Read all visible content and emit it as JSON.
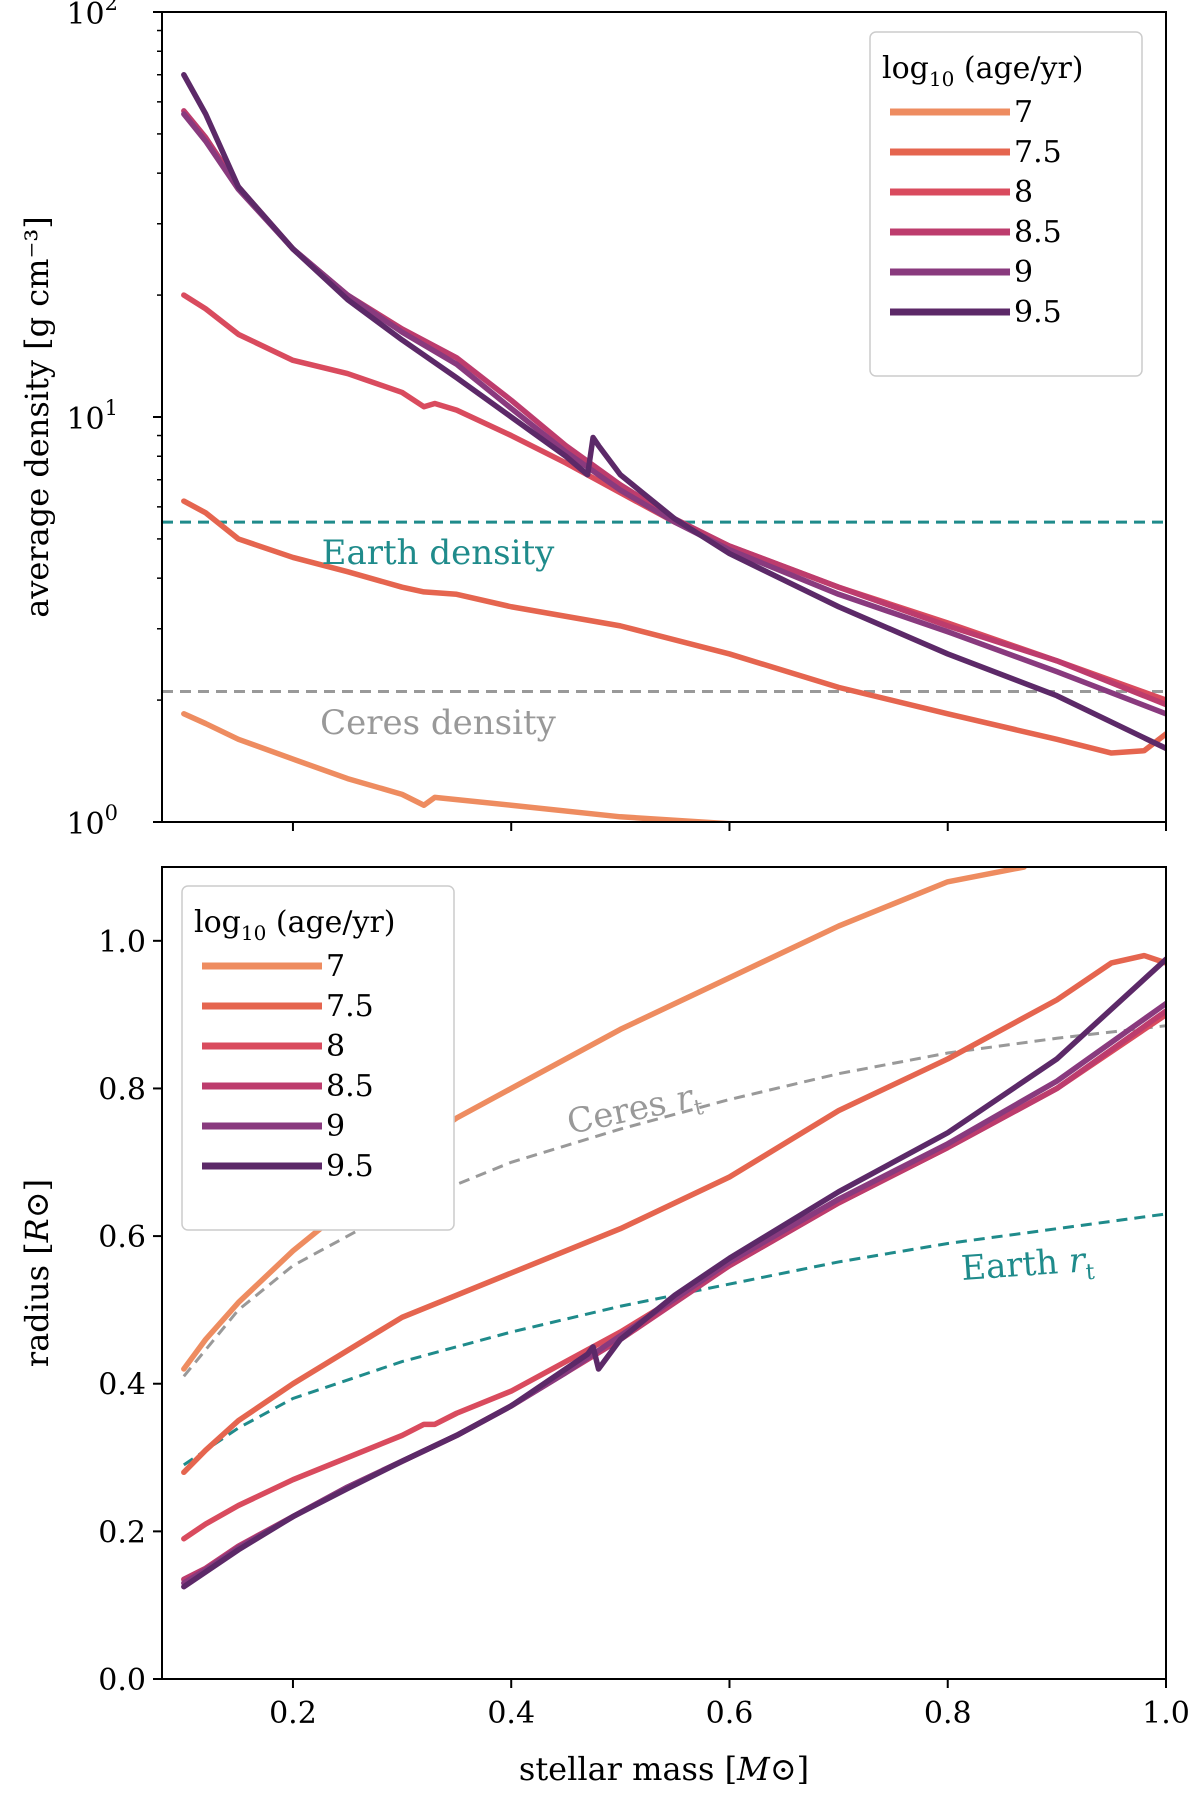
{
  "chart_data": [
    {
      "type": "line",
      "panel": "top",
      "yscale": "log",
      "xlabel": "",
      "ylabel": "average density [g cm⁻³]",
      "xlim": [
        0.08,
        1.0
      ],
      "ylim": [
        1,
        100
      ],
      "xticks": [
        0.2,
        0.4,
        0.6,
        0.8,
        1.0
      ],
      "yticks": [
        {
          "value": 1,
          "base": "10",
          "exp": "0"
        },
        {
          "value": 10,
          "base": "10",
          "exp": "1"
        },
        {
          "value": 100,
          "base": "10",
          "exp": "2"
        }
      ],
      "legend": {
        "title_pre": "log",
        "title_sub": "10",
        "title_post": " (age/yr)",
        "position": "top-right"
      },
      "series": [
        {
          "name": "7",
          "color": "#ee8c60",
          "x": [
            0.1,
            0.12,
            0.15,
            0.2,
            0.25,
            0.3,
            0.32,
            0.33,
            0.4,
            0.5,
            0.6
          ],
          "y": [
            1.85,
            1.75,
            1.6,
            1.43,
            1.28,
            1.17,
            1.1,
            1.15,
            1.1,
            1.03,
            0.99
          ]
        },
        {
          "name": "7.5",
          "color": "#e5654f",
          "x": [
            0.1,
            0.12,
            0.15,
            0.2,
            0.25,
            0.3,
            0.32,
            0.35,
            0.4,
            0.5,
            0.6,
            0.7,
            0.8,
            0.9,
            0.95,
            0.98,
            1.0
          ],
          "y": [
            6.2,
            5.8,
            5.0,
            4.5,
            4.15,
            3.8,
            3.7,
            3.65,
            3.4,
            3.05,
            2.6,
            2.15,
            1.85,
            1.6,
            1.48,
            1.5,
            1.65
          ]
        },
        {
          "name": "8",
          "color": "#d94b5e",
          "x": [
            0.1,
            0.12,
            0.15,
            0.2,
            0.25,
            0.3,
            0.32,
            0.33,
            0.35,
            0.4,
            0.45,
            0.5,
            0.55,
            0.6,
            0.7,
            0.8,
            0.9,
            1.0
          ],
          "y": [
            20.0,
            18.5,
            16.0,
            13.8,
            12.8,
            11.5,
            10.6,
            10.8,
            10.4,
            9.0,
            7.7,
            6.5,
            5.5,
            4.8,
            3.8,
            3.1,
            2.5,
            2.0
          ]
        },
        {
          "name": "8.5",
          "color": "#bd3c6d",
          "x": [
            0.1,
            0.12,
            0.15,
            0.2,
            0.25,
            0.3,
            0.35,
            0.4,
            0.45,
            0.5,
            0.55,
            0.6,
            0.7,
            0.8,
            0.9,
            1.0
          ],
          "y": [
            57.0,
            49.0,
            37.0,
            26.0,
            20.0,
            16.5,
            14.0,
            11.0,
            8.5,
            6.8,
            5.6,
            4.8,
            3.8,
            3.05,
            2.5,
            1.95
          ]
        },
        {
          "name": "9",
          "color": "#893a7e",
          "x": [
            0.1,
            0.12,
            0.15,
            0.2,
            0.25,
            0.3,
            0.35,
            0.4,
            0.45,
            0.5,
            0.55,
            0.6,
            0.7,
            0.8,
            0.9,
            1.0
          ],
          "y": [
            56.0,
            48.0,
            36.5,
            26.0,
            20.0,
            16.2,
            13.5,
            10.5,
            8.2,
            6.6,
            5.5,
            4.7,
            3.65,
            2.95,
            2.35,
            1.85
          ]
        },
        {
          "name": "9.5",
          "color": "#5c2968",
          "x": [
            0.1,
            0.12,
            0.15,
            0.2,
            0.25,
            0.3,
            0.35,
            0.4,
            0.45,
            0.47,
            0.475,
            0.48,
            0.5,
            0.55,
            0.6,
            0.7,
            0.8,
            0.9,
            1.0
          ],
          "y": [
            70.0,
            56.0,
            37.0,
            26.0,
            19.5,
            15.5,
            12.5,
            10.0,
            8.0,
            7.2,
            8.9,
            8.5,
            7.2,
            5.6,
            4.6,
            3.4,
            2.6,
            2.05,
            1.52
          ]
        }
      ],
      "reference_lines": [
        {
          "label": "Earth density",
          "value": 5.5,
          "color": "#1f8b8b"
        },
        {
          "label": "Ceres density",
          "value": 2.1,
          "color": "#999999"
        }
      ]
    },
    {
      "type": "line",
      "panel": "bottom",
      "yscale": "linear",
      "xlabel_pre": "stellar mass [",
      "xlabel_sym": "M",
      "xlabel_post": "]",
      "ylabel_pre": "radius [",
      "ylabel_sym": "R",
      "ylabel_post": "]",
      "xlim": [
        0.08,
        1.0
      ],
      "ylim": [
        0.0,
        1.1
      ],
      "xticks": [
        0.2,
        0.4,
        0.6,
        0.8,
        1.0
      ],
      "xtick_labels": [
        "0.2",
        "0.4",
        "0.6",
        "0.8",
        "1.0"
      ],
      "yticks": [
        0.0,
        0.2,
        0.4,
        0.6,
        0.8,
        1.0
      ],
      "ytick_labels": [
        "0.0",
        "0.2",
        "0.4",
        "0.6",
        "0.8",
        "1.0"
      ],
      "legend": {
        "title_pre": "log",
        "title_sub": "10",
        "title_post": " (age/yr)",
        "position": "top-left"
      },
      "series": [
        {
          "name": "7",
          "color": "#ee8c60",
          "x": [
            0.1,
            0.12,
            0.15,
            0.2,
            0.25,
            0.3,
            0.32,
            0.33,
            0.35,
            0.4,
            0.5,
            0.6,
            0.7,
            0.8,
            0.87
          ],
          "y": [
            0.42,
            0.46,
            0.51,
            0.58,
            0.64,
            0.7,
            0.745,
            0.74,
            0.76,
            0.8,
            0.88,
            0.95,
            1.02,
            1.08,
            1.1
          ]
        },
        {
          "name": "7.5",
          "color": "#e5654f",
          "x": [
            0.1,
            0.12,
            0.15,
            0.2,
            0.25,
            0.3,
            0.35,
            0.4,
            0.5,
            0.6,
            0.7,
            0.8,
            0.9,
            0.95,
            0.98,
            1.0
          ],
          "y": [
            0.28,
            0.31,
            0.35,
            0.4,
            0.445,
            0.49,
            0.52,
            0.55,
            0.61,
            0.68,
            0.77,
            0.84,
            0.92,
            0.97,
            0.98,
            0.97
          ]
        },
        {
          "name": "8",
          "color": "#d94b5e",
          "x": [
            0.1,
            0.12,
            0.15,
            0.2,
            0.25,
            0.3,
            0.32,
            0.33,
            0.35,
            0.4,
            0.5,
            0.6,
            0.7,
            0.8,
            0.9,
            1.0
          ],
          "y": [
            0.19,
            0.21,
            0.235,
            0.27,
            0.3,
            0.33,
            0.345,
            0.345,
            0.36,
            0.39,
            0.47,
            0.56,
            0.645,
            0.72,
            0.8,
            0.9
          ]
        },
        {
          "name": "8.5",
          "color": "#bd3c6d",
          "x": [
            0.1,
            0.12,
            0.15,
            0.2,
            0.25,
            0.3,
            0.35,
            0.4,
            0.45,
            0.5,
            0.6,
            0.7,
            0.8,
            0.9,
            1.0
          ],
          "y": [
            0.135,
            0.15,
            0.18,
            0.22,
            0.26,
            0.295,
            0.33,
            0.37,
            0.415,
            0.46,
            0.56,
            0.645,
            0.72,
            0.8,
            0.905
          ]
        },
        {
          "name": "9",
          "color": "#893a7e",
          "x": [
            0.1,
            0.12,
            0.15,
            0.2,
            0.25,
            0.3,
            0.35,
            0.4,
            0.45,
            0.5,
            0.6,
            0.7,
            0.8,
            0.9,
            1.0
          ],
          "y": [
            0.13,
            0.148,
            0.178,
            0.22,
            0.26,
            0.295,
            0.33,
            0.37,
            0.415,
            0.465,
            0.565,
            0.65,
            0.725,
            0.81,
            0.915
          ]
        },
        {
          "name": "9.5",
          "color": "#5c2968",
          "x": [
            0.1,
            0.12,
            0.15,
            0.2,
            0.25,
            0.3,
            0.35,
            0.4,
            0.45,
            0.47,
            0.475,
            0.48,
            0.5,
            0.55,
            0.6,
            0.7,
            0.8,
            0.9,
            1.0
          ],
          "y": [
            0.125,
            0.145,
            0.175,
            0.22,
            0.258,
            0.295,
            0.33,
            0.37,
            0.42,
            0.44,
            0.45,
            0.42,
            0.46,
            0.52,
            0.57,
            0.66,
            0.74,
            0.84,
            0.975
          ]
        }
      ],
      "reference_lines": [
        {
          "label_pre": "Ceres ",
          "label_sym": "r",
          "label_sub": "t",
          "color": "#999999",
          "x": [
            0.1,
            0.15,
            0.2,
            0.3,
            0.4,
            0.5,
            0.6,
            0.7,
            0.8,
            0.9,
            1.0
          ],
          "y": [
            0.41,
            0.5,
            0.56,
            0.64,
            0.7,
            0.745,
            0.785,
            0.82,
            0.848,
            0.868,
            0.885
          ]
        },
        {
          "label_pre": "Earth ",
          "label_sym": "r",
          "label_sub": "t",
          "color": "#1f8b8b",
          "x": [
            0.1,
            0.15,
            0.2,
            0.3,
            0.4,
            0.5,
            0.6,
            0.7,
            0.8,
            0.9,
            1.0
          ],
          "y": [
            0.29,
            0.34,
            0.38,
            0.43,
            0.47,
            0.505,
            0.535,
            0.565,
            0.59,
            0.61,
            0.63
          ]
        }
      ]
    }
  ]
}
